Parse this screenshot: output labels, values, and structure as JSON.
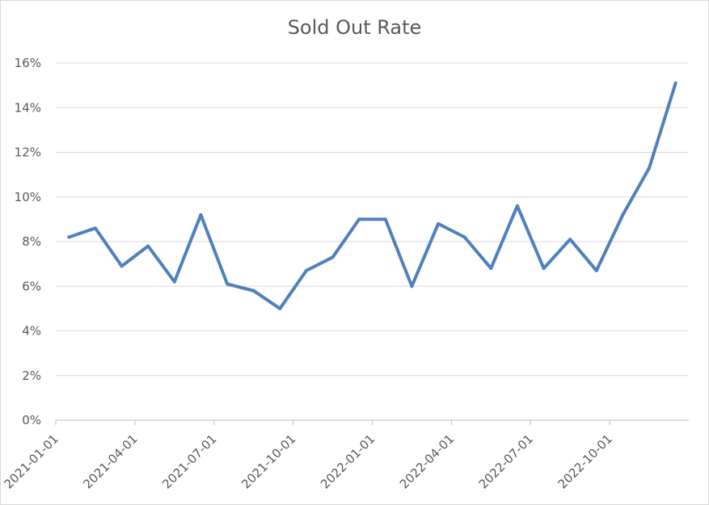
{
  "chart_data": {
    "type": "line",
    "title": "Sold Out Rate",
    "xlabel": "",
    "ylabel": "",
    "ylim": [
      0,
      0.16
    ],
    "y_ticks": [
      "0%",
      "2%",
      "4%",
      "6%",
      "8%",
      "10%",
      "12%",
      "14%",
      "16%"
    ],
    "x_ticks": [
      "2021-01-01",
      "2021-04-01",
      "2021-07-01",
      "2021-10-01",
      "2022-01-01",
      "2022-04-01",
      "2022-07-01",
      "2022-10-01"
    ],
    "grid": true,
    "legend": "none",
    "series": [
      {
        "color": "#4f81bd",
        "x": [
          "2021-01-01",
          "2021-02-01",
          "2021-03-01",
          "2021-04-01",
          "2021-05-01",
          "2021-06-01",
          "2021-07-01",
          "2021-08-01",
          "2021-09-01",
          "2021-10-01",
          "2021-11-01",
          "2021-12-01",
          "2022-01-01",
          "2022-02-01",
          "2022-03-01",
          "2022-04-01",
          "2022-05-01",
          "2022-06-01",
          "2022-07-01",
          "2022-08-01",
          "2022-09-01",
          "2022-10-01",
          "2022-11-01",
          "2022-12-01"
        ],
        "values": [
          0.082,
          0.086,
          0.069,
          0.078,
          0.062,
          0.092,
          0.061,
          0.058,
          0.05,
          0.067,
          0.073,
          0.09,
          0.09,
          0.06,
          0.088,
          0.082,
          0.068,
          0.096,
          0.068,
          0.081,
          0.067,
          0.092,
          0.113,
          0.151
        ]
      }
    ]
  }
}
